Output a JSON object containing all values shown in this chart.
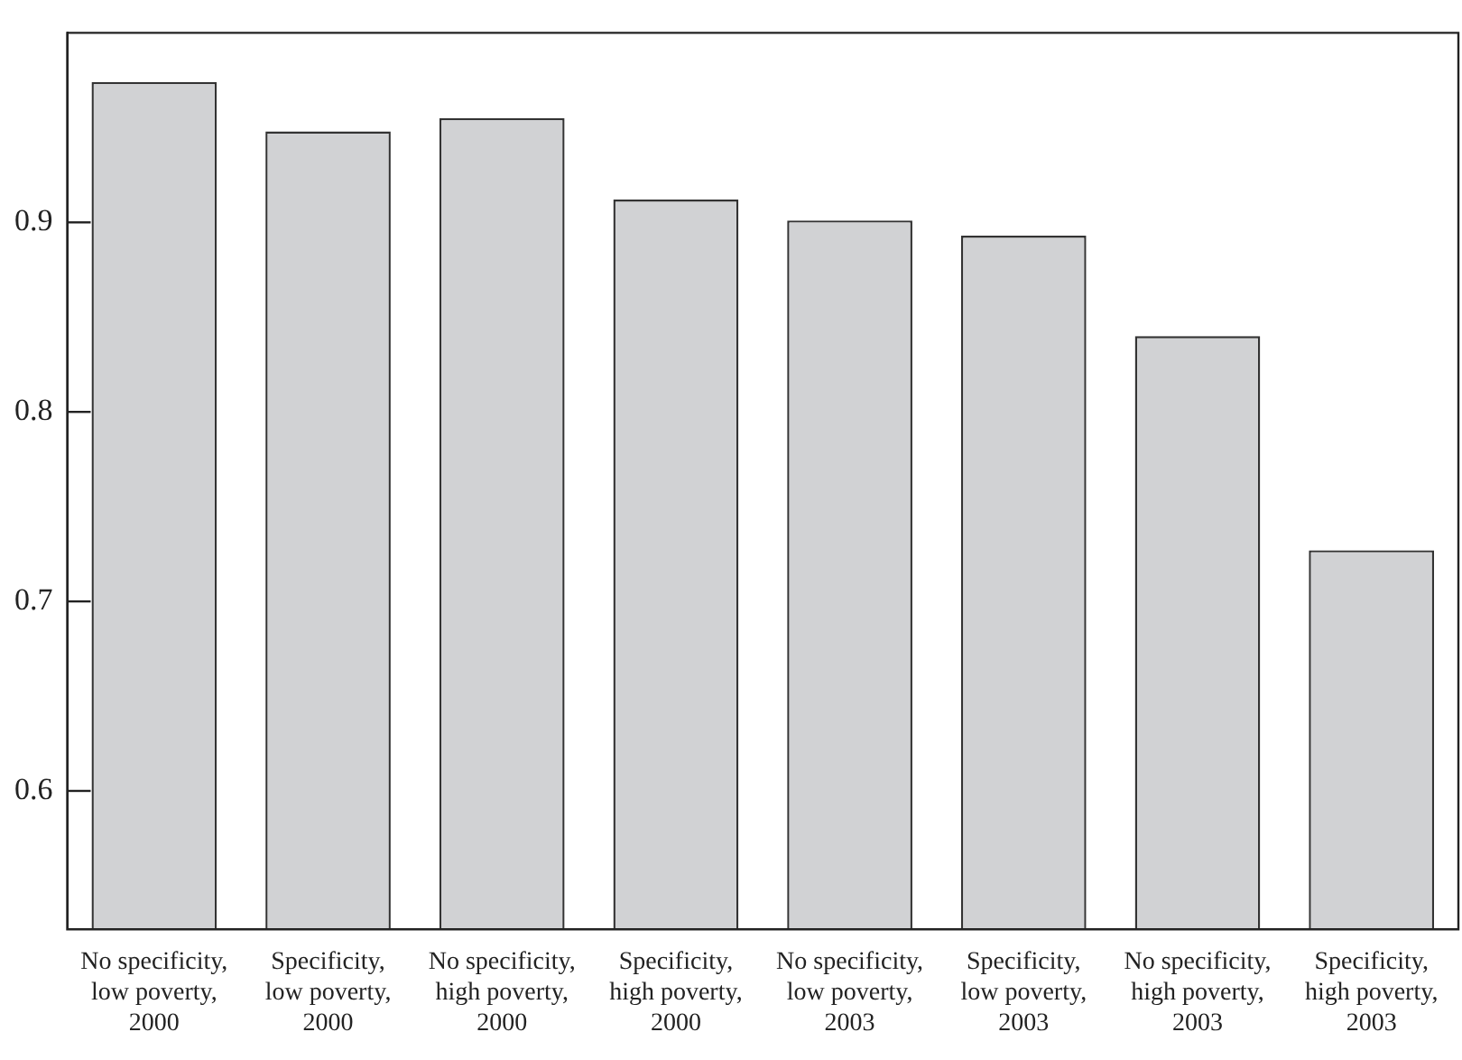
{
  "chart_data": {
    "type": "bar",
    "categories": [
      "No specificity, low poverty, 2000",
      "Specificity, low poverty, 2000",
      "No specificity, high poverty, 2000",
      "Specificity, high poverty, 2000",
      "No specificity, low poverty, 2003",
      "Specificity, low poverty, 2003",
      "No specificity, high poverty, 2003",
      "Specificity, high poverty, 2003"
    ],
    "values": [
      0.974,
      0.948,
      0.955,
      0.912,
      0.901,
      0.893,
      0.84,
      0.727
    ],
    "color": "#d1d2d4",
    "ylim": [
      0.527,
      1.0
    ],
    "yticks": [
      0.6,
      0.7,
      0.8,
      0.9
    ],
    "grid": false,
    "legend": false
  }
}
